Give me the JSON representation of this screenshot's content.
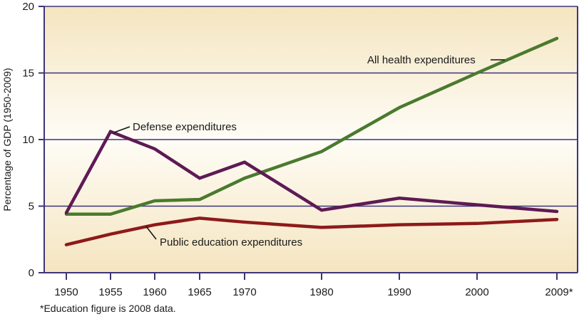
{
  "chart_data": {
    "type": "line",
    "title": "",
    "xlabel": "",
    "ylabel": "Percentage of GDP (1950-2009)",
    "ylim": [
      0,
      20
    ],
    "yticks": [
      0,
      5,
      10,
      15,
      20
    ],
    "grid": true,
    "categories": [
      "1950",
      "1955",
      "1960",
      "1965",
      "1970",
      "1980",
      "1990",
      "2000",
      "2009*"
    ],
    "x": [
      1950,
      1955,
      1960,
      1965,
      1970,
      1980,
      1990,
      2000,
      2009
    ],
    "series": [
      {
        "name": "All health expenditures",
        "color": "#4a7a2e",
        "values": [
          4.4,
          4.4,
          5.4,
          5.5,
          7.1,
          9.1,
          12.4,
          15.0,
          17.6
        ]
      },
      {
        "name": "Defense expenditures",
        "color": "#5e1a55",
        "values": [
          4.5,
          10.6,
          9.3,
          7.1,
          8.3,
          4.7,
          5.6,
          5.1,
          4.6
        ]
      },
      {
        "name": "Public education expenditures",
        "color": "#8e1a1a",
        "values": [
          2.1,
          2.9,
          3.6,
          4.1,
          3.8,
          3.4,
          3.6,
          3.7,
          4.0
        ]
      }
    ],
    "annotations": [
      {
        "text": "All health expenditures",
        "series": "All health expenditures"
      },
      {
        "text": "Defense expenditures",
        "series": "Defense expenditures"
      },
      {
        "text": "Public education expenditures",
        "series": "Public education expenditures"
      }
    ],
    "footnote": "*Education figure is 2008 data."
  },
  "colors": {
    "axis": "#3d3478",
    "bg_top": "#f5e6c4",
    "bg_mid": "#fdf9f0",
    "bg_bottom": "#f5e6c4"
  }
}
